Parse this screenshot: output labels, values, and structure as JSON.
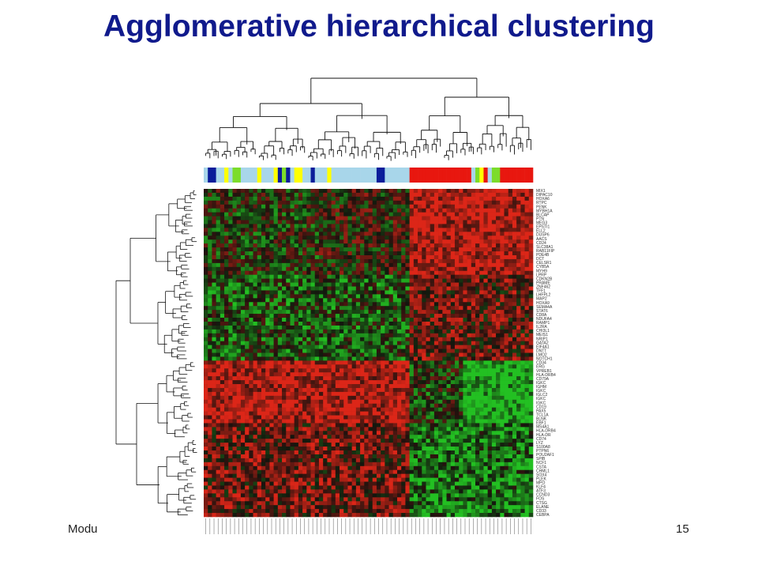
{
  "slide": {
    "title": "Agglomerative hierarchical clustering",
    "footer_left": "Modu",
    "page_number": "15"
  },
  "figure": {
    "type": "clustered-heatmap",
    "colors": {
      "high": "#cc2418",
      "mid": "#1a1a1a",
      "low": "#22b522",
      "sample_bar": [
        "#a8d6ea",
        "#0a1c9a",
        "#ffff00",
        "#7cdc2a",
        "#e8170f"
      ]
    },
    "gene_labels": [
      "MIX1",
      "DIPAC10",
      "HOXA6",
      "RTPC",
      "PENK",
      "MYBH1A",
      "BLCAP",
      "PTN",
      "MEG3",
      "EPSTI1",
      "ELL2",
      "DUSP6",
      "AACS",
      "CD24",
      "SLC38A1",
      "RAB11FIP",
      "PDE4B",
      "DCT",
      "CELSR1",
      "CYB5A",
      "MYH9",
      "LPRP",
      "CDKN2B",
      "PRAME",
      "ZNF462",
      "TFF1",
      "LHFPL2",
      "MAP2",
      "HOXA9",
      "SEMA4A",
      "STAT6",
      "CD8A",
      "NDUFA4",
      "RAMP1",
      "IL2RA",
      "CHI3L1",
      "MEIS1",
      "NRIP1",
      "GATA2",
      "EIF4A1",
      "DNTT",
      "LMO2",
      "NOTCH1",
      "CD34",
      "ERG",
      "VPREB1",
      "HLA-DRB4",
      "CD79A",
      "IGKC",
      "IGHM",
      "IGKC",
      "IGLC2",
      "IGKC",
      "IGKC",
      "CD19",
      "PAX5",
      "TCL1A",
      "BLNK",
      "EBF1",
      "MS4A1",
      "HLA-DRB4",
      "HLA-DR",
      "CD74",
      "LYZ",
      "S100A8",
      "PTPN6",
      "POU2AF1",
      "SPIB",
      "NCF1",
      "CSTA",
      "CHML1",
      "SOX4",
      "PLEK",
      "MPO",
      "KLF4",
      "ATF3",
      "CCND3",
      "FOS",
      "CTSG",
      "ELANE",
      "CD33",
      "CEBPA"
    ]
  }
}
